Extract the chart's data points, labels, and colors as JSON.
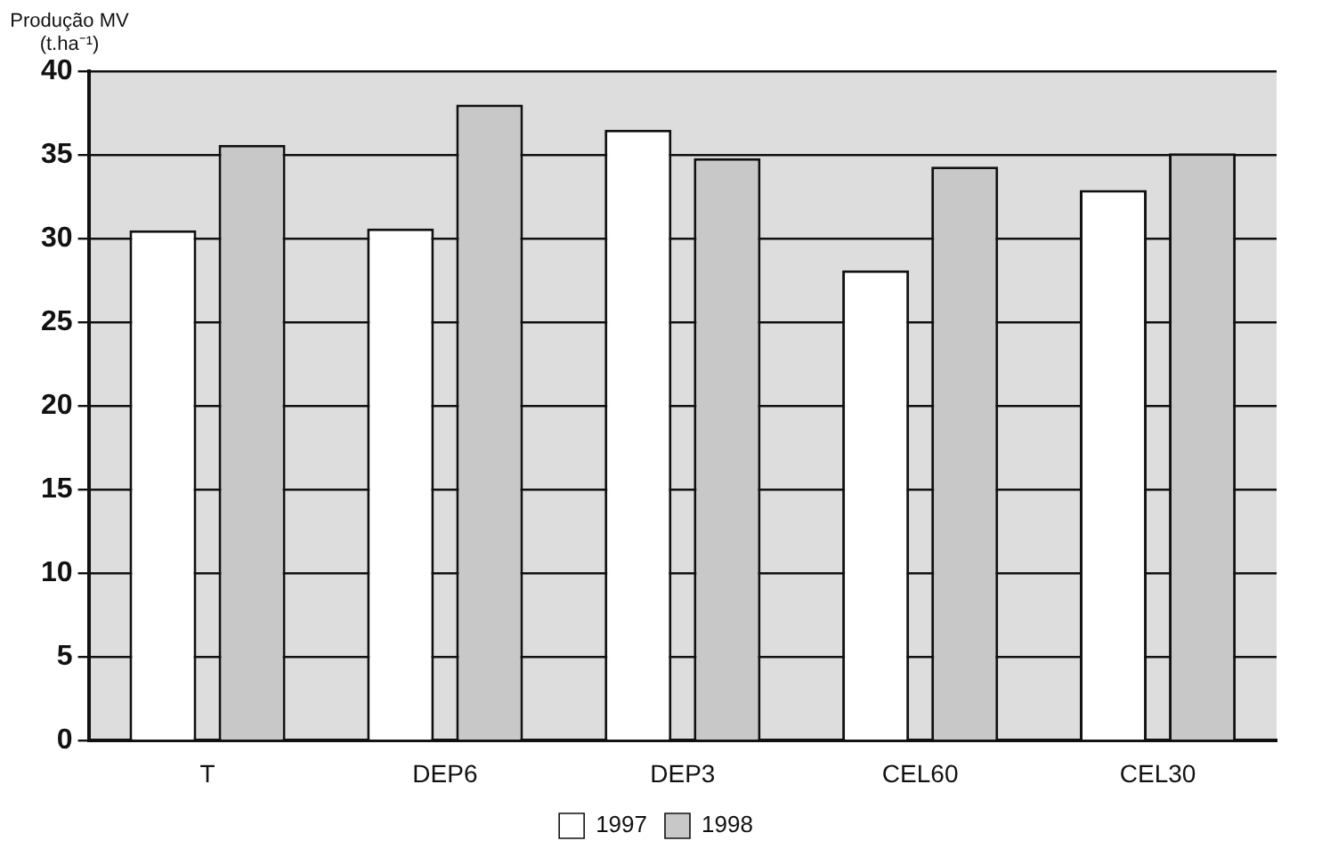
{
  "chart_data": {
    "type": "bar",
    "ylabel": "Produção MV (t.ha⁻¹)",
    "categories": [
      "T",
      "DEP6",
      "DEP3",
      "CEL60",
      "CEL30"
    ],
    "series": [
      {
        "name": "1997",
        "color": "#ffffff",
        "values": [
          30.5,
          30.6,
          36.5,
          28.1,
          32.9
        ]
      },
      {
        "name": "1998",
        "color": "#c8c8c8",
        "values": [
          35.6,
          38.0,
          34.8,
          34.3,
          35.1
        ]
      }
    ],
    "ylim": [
      0,
      40
    ],
    "yticks": [
      0,
      5,
      10,
      15,
      20,
      25,
      30,
      35,
      40
    ],
    "grid": "y",
    "legend": "bottom"
  }
}
